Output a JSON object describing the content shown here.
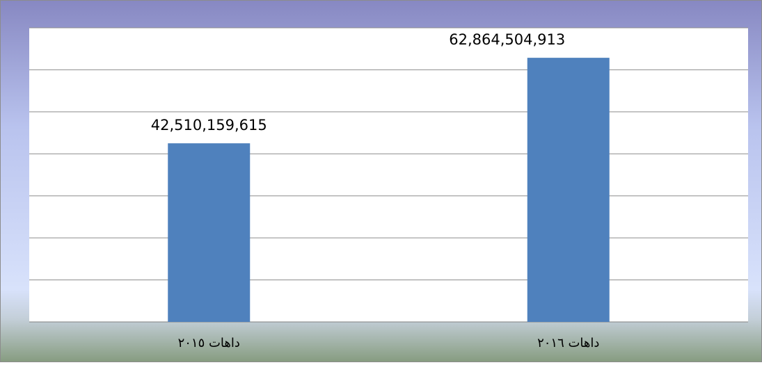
{
  "chart_data": {
    "type": "bar",
    "categories": [
      "داهات ٢٠١٥",
      "داهات ٢٠١٦"
    ],
    "values": [
      42510159615,
      62864504913
    ],
    "value_labels": [
      "42,510,159,615",
      "62,864,504,913"
    ],
    "color": "#4f81bd",
    "ylim": [
      0,
      70000000000
    ],
    "yticks": [
      0,
      10000000000,
      20000000000,
      30000000000,
      40000000000,
      50000000000,
      60000000000,
      70000000000
    ],
    "grid": true
  }
}
